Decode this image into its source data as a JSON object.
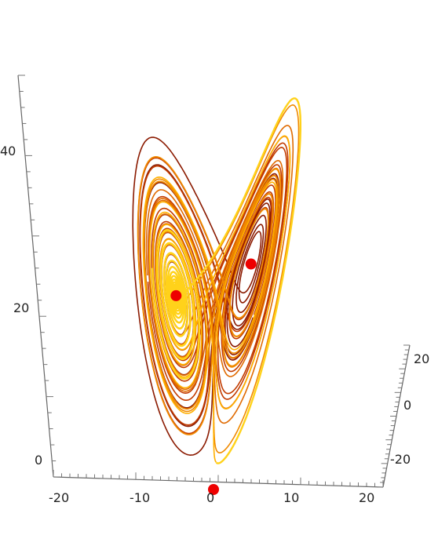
{
  "chart_data": {
    "type": "scatter",
    "subtype": "3d-parametric-curve (Lorenz attractor)",
    "title": "",
    "x_axis": {
      "label": "",
      "range": [
        -20,
        20
      ],
      "ticks": [
        "-20",
        "-10",
        "0",
        "10",
        "20"
      ]
    },
    "y_axis": {
      "label": "",
      "range": [
        -30,
        30
      ],
      "ticks": [
        "20",
        "0",
        "-20"
      ]
    },
    "z_axis": {
      "label": "",
      "range": [
        0,
        50
      ],
      "ticks": [
        "0",
        "20",
        "40"
      ]
    },
    "grid": false,
    "legend": "none",
    "colors": {
      "trajectory": [
        "#8b1a00",
        "#c23b00",
        "#e06a00",
        "#f08a00",
        "#ffb000",
        "#ffd21a"
      ],
      "fixed_points": "#ee0000"
    },
    "fixed_points": [
      {
        "x": -8.49,
        "y": -8.49,
        "z": 27
      },
      {
        "x": 8.49,
        "y": 8.49,
        "z": 27
      },
      {
        "x": 0,
        "y": 0,
        "z": 0
      }
    ],
    "trajectory_params": {
      "sigma": 10,
      "rho": 28,
      "beta": 2.667
    }
  }
}
